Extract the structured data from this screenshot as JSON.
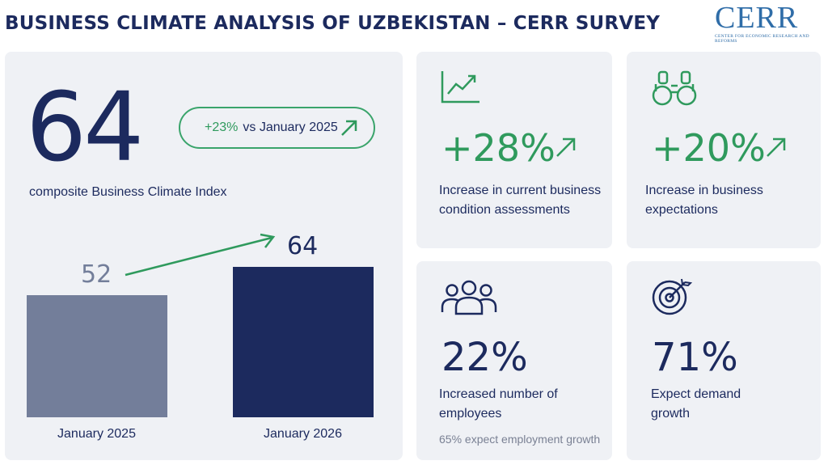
{
  "header": {
    "title": "BUSINESS CLIMATE ANALYSIS OF UZBEKISTAN – CERR SURVEY",
    "logo_mark": "CERR",
    "logo_subtitle": "Center for Economic Research and Reforms"
  },
  "index_card": {
    "value": "64",
    "caption": "composite Business Climate Index",
    "change_value": "+23%",
    "change_text": "vs January 2025"
  },
  "chart_data": {
    "type": "bar",
    "title": "",
    "categories": [
      "January 2025",
      "January 2026"
    ],
    "values": [
      52,
      64
    ],
    "value_labels": [
      "52",
      "64"
    ],
    "ylim": [
      0,
      80
    ],
    "xlabel": "",
    "ylabel": "",
    "grid": false,
    "colors": [
      "#737e9a",
      "#1c2a5e"
    ]
  },
  "stats": [
    {
      "icon": "line-chart-icon",
      "value": "+28%",
      "label_line1": "Increase in current business",
      "label_line2": "condition assessments"
    },
    {
      "icon": "binoculars-icon",
      "value": "+20%",
      "label_line1": "Increase in business",
      "label_line2": "expectations"
    },
    {
      "icon": "people-icon",
      "value": "22%",
      "label_line1": "Increased number of",
      "label_line2": "employees",
      "note": "65% expect employment growth"
    },
    {
      "icon": "target-icon",
      "value": "71%",
      "label_line1": "Expect demand",
      "label_line2": "growth"
    }
  ],
  "colors": {
    "navy": "#1c2a5e",
    "green": "#2f9a5d",
    "bar_light": "#737e9a",
    "card_bg": "#eff1f5"
  }
}
